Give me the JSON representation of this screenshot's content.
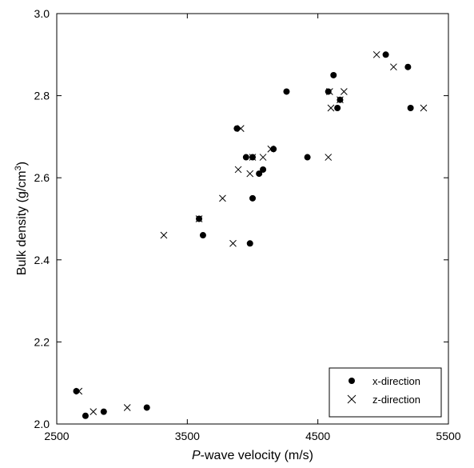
{
  "chart_data": {
    "type": "scatter",
    "xlabel_italic": "P",
    "xlabel_rest": "-wave velocity (m/s)",
    "ylabel_main": "Bulk density (g/cm",
    "ylabel_sup": "3",
    "ylabel_close": ")",
    "xlim": [
      2500,
      5500
    ],
    "ylim": [
      2.0,
      3.0
    ],
    "xticks": [
      2500,
      3500,
      4500,
      5500
    ],
    "xtick_labels": [
      "2500",
      "3500",
      "4500",
      "5500"
    ],
    "yticks": [
      2.0,
      2.2,
      2.4,
      2.6,
      2.8,
      3.0
    ],
    "ytick_labels": [
      "2.0",
      "2.2",
      "2.4",
      "2.6",
      "2.8",
      "3.0"
    ],
    "grid": false,
    "legend_position": "bottom-right",
    "series": [
      {
        "name": "x-direction",
        "marker": "filled-circle",
        "color": "#000000",
        "points": [
          [
            2650,
            2.08
          ],
          [
            2720,
            2.02
          ],
          [
            2860,
            2.03
          ],
          [
            3190,
            2.04
          ],
          [
            3590,
            2.5
          ],
          [
            3620,
            2.46
          ],
          [
            3880,
            2.72
          ],
          [
            3950,
            2.65
          ],
          [
            3980,
            2.44
          ],
          [
            4000,
            2.65
          ],
          [
            4000,
            2.55
          ],
          [
            4050,
            2.61
          ],
          [
            4080,
            2.62
          ],
          [
            4160,
            2.67
          ],
          [
            4260,
            2.81
          ],
          [
            4420,
            2.65
          ],
          [
            4580,
            2.81
          ],
          [
            4620,
            2.85
          ],
          [
            4650,
            2.77
          ],
          [
            4670,
            2.79
          ],
          [
            5020,
            2.9
          ],
          [
            5190,
            2.87
          ],
          [
            5210,
            2.77
          ]
        ]
      },
      {
        "name": "z-direction",
        "marker": "x-cross",
        "color": "#000000",
        "points": [
          [
            2670,
            2.08
          ],
          [
            2780,
            2.03
          ],
          [
            3040,
            2.04
          ],
          [
            3320,
            2.46
          ],
          [
            3590,
            2.5
          ],
          [
            3770,
            2.55
          ],
          [
            3850,
            2.44
          ],
          [
            3890,
            2.62
          ],
          [
            3910,
            2.72
          ],
          [
            3980,
            2.61
          ],
          [
            4000,
            2.65
          ],
          [
            4080,
            2.65
          ],
          [
            4140,
            2.67
          ],
          [
            4580,
            2.65
          ],
          [
            4590,
            2.81
          ],
          [
            4600,
            2.77
          ],
          [
            4670,
            2.79
          ],
          [
            4700,
            2.81
          ],
          [
            4950,
            2.9
          ],
          [
            5080,
            2.87
          ],
          [
            5310,
            2.77
          ]
        ]
      }
    ]
  }
}
